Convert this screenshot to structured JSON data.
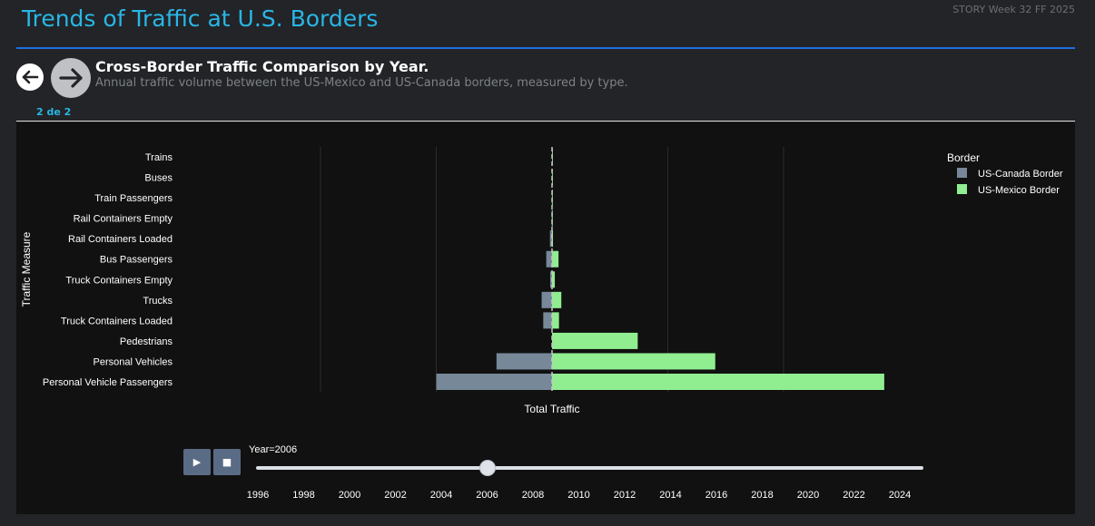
{
  "header": {
    "title": "Trends of Traffic at U.S. Borders",
    "story_tag": "STORY Week 32 FF 2025"
  },
  "slide": {
    "title": "Cross-Border Traffic Comparison by Year.",
    "subtitle": "Annual traffic volume between the US-Mexico and US-Canada borders, measured by type.",
    "page_indicator": "2 de 2"
  },
  "colors": {
    "canada": "#778899",
    "mexico": "#90ee90",
    "accent": "#29b6e6",
    "rule": "#1e6fe0"
  },
  "chart_data": {
    "type": "bar",
    "orientation": "horizontal",
    "barmode": "diverging",
    "categories": [
      "Trains",
      "Buses",
      "Train Passengers",
      "Rail Containers Empty",
      "Rail Containers Loaded",
      "Bus Passengers",
      "Truck Containers Empty",
      "Trucks",
      "Truck Containers Loaded",
      "Pedestrians",
      "Personal Vehicles",
      "Personal Vehicle Passengers"
    ],
    "series": [
      {
        "name": "US-Canada Border",
        "values": [
          -0.3,
          -0.5,
          -1,
          -2,
          -9,
          -25,
          -8,
          -45,
          -38,
          0,
          -240,
          -500
        ]
      },
      {
        "name": "US-Mexico Border",
        "values": [
          0.3,
          0.5,
          0.5,
          1,
          4,
          28,
          12,
          40,
          30,
          370,
          705,
          1435
        ]
      }
    ],
    "xlabel": "Total Traffic",
    "ylabel": "Traffic Measure",
    "legend_title": "Border",
    "legend_position": "top-right",
    "grid": true,
    "xlim": [
      -1600,
      1600
    ],
    "slider": {
      "label": "Year=2006",
      "current": 2006,
      "ticks": [
        "1996",
        "1998",
        "2000",
        "2002",
        "2004",
        "2006",
        "2008",
        "2010",
        "2012",
        "2014",
        "2016",
        "2018",
        "2020",
        "2022",
        "2024"
      ]
    }
  }
}
